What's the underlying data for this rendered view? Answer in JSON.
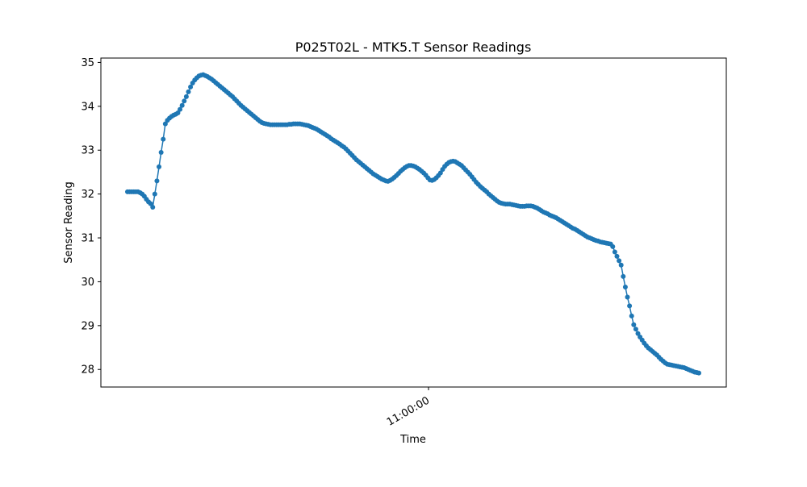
{
  "chart_data": {
    "type": "line",
    "title": "P025T02L - MTK5.T Sensor Readings",
    "xlabel": "Time",
    "ylabel": "Sensor Reading",
    "x_tick_labels": [
      "11:00:00"
    ],
    "y_ticks": [
      28,
      29,
      30,
      31,
      32,
      33,
      34,
      35
    ],
    "ylim": [
      27.6,
      35.1
    ],
    "grid": false,
    "marker": "circle",
    "line_color": "#1f77b4",
    "series": [
      {
        "values": [
          32.05,
          32.05,
          32.05,
          32.05,
          32.05,
          32.05,
          32.03,
          32.0,
          31.95,
          31.88,
          31.82,
          31.78,
          31.7,
          32.0,
          32.3,
          32.62,
          32.95,
          33.25,
          33.6,
          33.68,
          33.73,
          33.77,
          33.8,
          33.82,
          33.85,
          33.93,
          34.02,
          34.12,
          34.22,
          34.33,
          34.44,
          34.53,
          34.6,
          34.65,
          34.69,
          34.71,
          34.72,
          34.7,
          34.68,
          34.65,
          34.62,
          34.58,
          34.54,
          34.5,
          34.46,
          34.42,
          34.38,
          34.34,
          34.3,
          34.26,
          34.22,
          34.17,
          34.12,
          34.07,
          34.02,
          33.98,
          33.94,
          33.9,
          33.86,
          33.82,
          33.78,
          33.74,
          33.7,
          33.66,
          33.63,
          33.61,
          33.6,
          33.59,
          33.58,
          33.58,
          33.58,
          33.58,
          33.58,
          33.58,
          33.58,
          33.58,
          33.58,
          33.59,
          33.59,
          33.6,
          33.6,
          33.6,
          33.6,
          33.59,
          33.58,
          33.57,
          33.56,
          33.54,
          33.52,
          33.5,
          33.48,
          33.45,
          33.42,
          33.39,
          33.36,
          33.33,
          33.3,
          33.26,
          33.23,
          33.2,
          33.17,
          33.14,
          33.1,
          33.07,
          33.03,
          32.98,
          32.93,
          32.88,
          32.83,
          32.78,
          32.74,
          32.7,
          32.66,
          32.62,
          32.58,
          32.54,
          32.5,
          32.46,
          32.43,
          32.4,
          32.37,
          32.34,
          32.32,
          32.3,
          32.29,
          32.31,
          32.34,
          32.38,
          32.42,
          32.47,
          32.52,
          32.56,
          32.6,
          32.63,
          32.65,
          32.65,
          32.64,
          32.62,
          32.59,
          32.56,
          32.52,
          32.48,
          32.43,
          32.37,
          32.32,
          32.31,
          32.33,
          32.37,
          32.42,
          32.48,
          32.56,
          32.63,
          32.68,
          32.72,
          32.74,
          32.75,
          32.74,
          32.71,
          32.68,
          32.65,
          32.6,
          32.55,
          32.5,
          32.45,
          32.39,
          32.33,
          32.27,
          32.22,
          32.17,
          32.13,
          32.09,
          32.05,
          32.0,
          31.96,
          31.92,
          31.88,
          31.84,
          31.81,
          31.79,
          31.78,
          31.77,
          31.77,
          31.77,
          31.76,
          31.75,
          31.74,
          31.73,
          31.72,
          31.72,
          31.72,
          31.73,
          31.73,
          31.73,
          31.72,
          31.7,
          31.68,
          31.65,
          31.62,
          31.59,
          31.57,
          31.55,
          31.52,
          31.5,
          31.48,
          31.46,
          31.43,
          31.4,
          31.37,
          31.34,
          31.31,
          31.28,
          31.25,
          31.22,
          31.2,
          31.17,
          31.14,
          31.11,
          31.08,
          31.05,
          31.02,
          31.0,
          30.98,
          30.96,
          30.94,
          30.93,
          30.91,
          30.9,
          30.89,
          30.88,
          30.87,
          30.86,
          30.8,
          30.68,
          30.58,
          30.48,
          30.38,
          30.12,
          29.88,
          29.65,
          29.45,
          29.22,
          29.02,
          28.92,
          28.82,
          28.74,
          28.67,
          28.6,
          28.54,
          28.49,
          28.45,
          28.41,
          28.37,
          28.33,
          28.28,
          28.23,
          28.19,
          28.15,
          28.12,
          28.11,
          28.1,
          28.09,
          28.08,
          28.07,
          28.06,
          28.05,
          28.04,
          28.02,
          28.0,
          27.98,
          27.96,
          27.94,
          27.93,
          27.92
        ]
      }
    ]
  }
}
